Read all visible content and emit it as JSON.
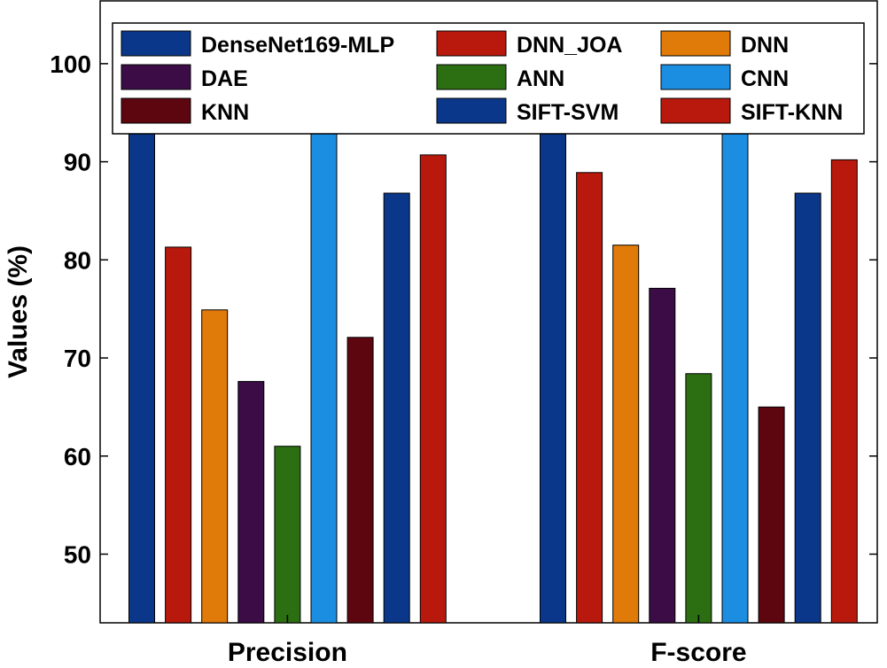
{
  "chart_data": {
    "type": "bar",
    "title": "",
    "xlabel": "",
    "ylabel": "Values (%)",
    "ylim": [
      43,
      106.4
    ],
    "yticks": [
      50,
      60,
      70,
      80,
      90,
      100
    ],
    "categories": [
      "Precision",
      "F-score"
    ],
    "grid": false,
    "legend_position": "top",
    "series": [
      {
        "name": "DenseNet169-MLP",
        "color": "#0a3789",
        "values": [
          96.9,
          96.5
        ]
      },
      {
        "name": "DNN_JOA",
        "color": "#b8190c",
        "values": [
          81.3,
          88.9
        ]
      },
      {
        "name": "DNN",
        "color": "#e07a09",
        "values": [
          74.9,
          81.5
        ]
      },
      {
        "name": "DAE",
        "color": "#3c0c47",
        "values": [
          67.6,
          77.1
        ]
      },
      {
        "name": "ANN",
        "color": "#2c6e12",
        "values": [
          61.0,
          68.4
        ]
      },
      {
        "name": "CNN",
        "color": "#1b8ee2",
        "values": [
          94.0,
          94.0
        ]
      },
      {
        "name": "KNN",
        "color": "#5e0610",
        "values": [
          72.1,
          65.0
        ]
      },
      {
        "name": "SIFT-SVM",
        "color": "#0a3789",
        "values": [
          86.8,
          86.8
        ]
      },
      {
        "name": "SIFT-KNN",
        "color": "#b8190c",
        "values": [
          90.7,
          90.2
        ]
      }
    ]
  }
}
